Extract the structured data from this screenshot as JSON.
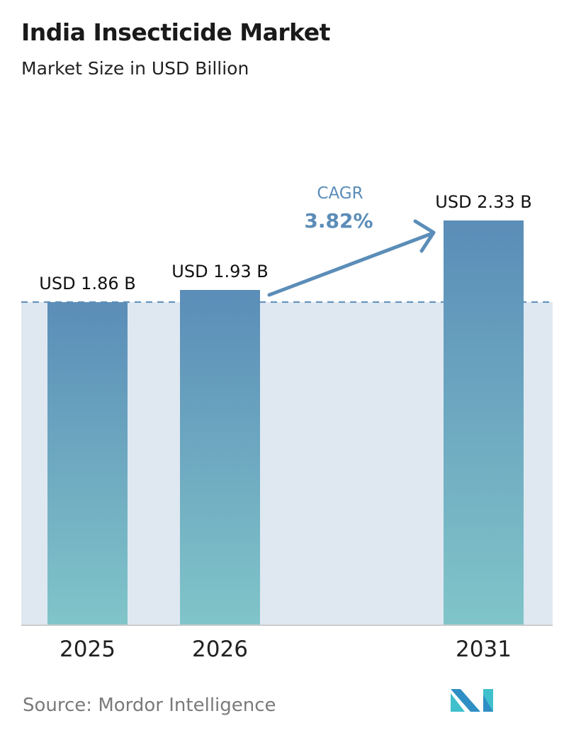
{
  "chart_data": {
    "type": "bar",
    "title": "India Insecticide Market",
    "subtitle": "Market Size in USD Billion",
    "categories": [
      "2025",
      "2026",
      "2031"
    ],
    "values": [
      1.86,
      1.93,
      2.33
    ],
    "data_labels": [
      "USD 1.86 B",
      "USD 1.93 B",
      "USD 2.33 B"
    ],
    "ylim": [
      0,
      2.33
    ],
    "grid": false,
    "reference_line": {
      "value": 1.86,
      "style": "dashed"
    },
    "annotation": {
      "label": "CAGR",
      "value": "3.82%"
    },
    "colors": {
      "bar_top": "#5b8db8",
      "bar_bottom": "#80c5c9",
      "band": "#dfe8f1",
      "annotation": "#5b8db8",
      "axis": "#cccccc"
    }
  },
  "source": "Source:  Mordor Intelligence",
  "logo": {
    "text": "Mordor Intelligence",
    "colors": [
      "#2f8fc4",
      "#3fc0cc"
    ]
  }
}
